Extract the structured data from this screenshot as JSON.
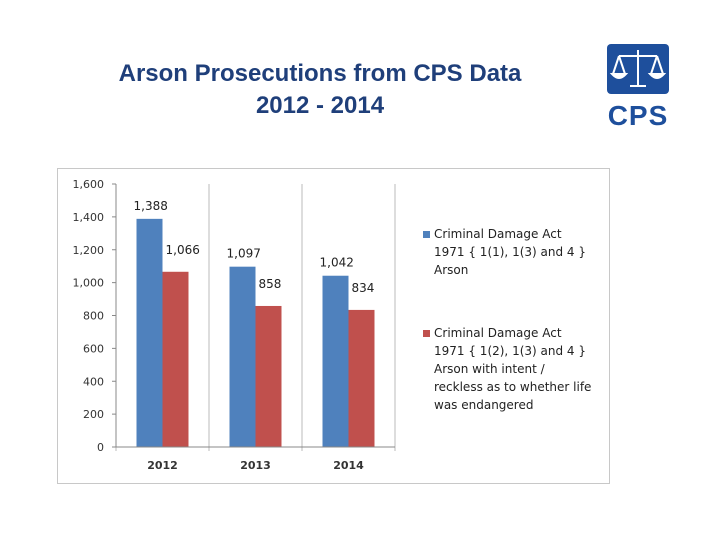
{
  "title": {
    "line1": "Arson Prosecutions from CPS Data",
    "line2": "2012 - 2014"
  },
  "logo": {
    "text": "CPS",
    "icon": "scales-of-justice-icon",
    "brand_color": "#1e4f9c"
  },
  "chart_data": {
    "type": "bar",
    "title": "Arson Prosecutions from CPS Data 2012 - 2014",
    "xlabel": "",
    "ylabel": "",
    "categories": [
      "2012",
      "2013",
      "2014"
    ],
    "ylim": [
      0,
      1600
    ],
    "yticks": [
      0,
      200,
      400,
      600,
      800,
      1000,
      1200,
      1400,
      1600
    ],
    "ytick_labels": [
      "0",
      "200",
      "400",
      "600",
      "800",
      "1,000",
      "1,200",
      "1,400",
      "1,600"
    ],
    "grid": "vertical separators between categories",
    "legend_position": "right",
    "series": [
      {
        "name": "Criminal Damage Act 1971 { 1(1), 1(3) and 4 } Arson",
        "legend_lines": [
          "Criminal Damage Act",
          "1971 { 1(1), 1(3) and 4 }",
          "Arson"
        ],
        "color": "#4f81bd",
        "values": [
          1388,
          1097,
          1042
        ],
        "labels": [
          "1,388",
          "1,097",
          "1,042"
        ]
      },
      {
        "name": "Criminal Damage Act 1971 { 1(2), 1(3) and 4 } Arson with intent / reckless as to whether life was endangered",
        "legend_lines": [
          "Criminal Damage Act",
          "1971 { 1(2), 1(3) and 4 }",
          "Arson with intent /",
          "reckless as to whether life",
          "was endangered"
        ],
        "color": "#c0504d",
        "values": [
          1066,
          858,
          834
        ],
        "labels": [
          "1,066",
          "858",
          "834"
        ]
      }
    ]
  }
}
